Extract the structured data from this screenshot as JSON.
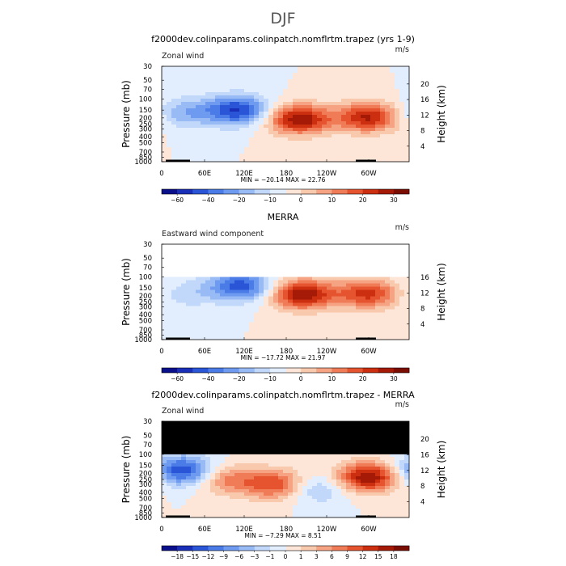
{
  "figure": {
    "title": "DJF"
  },
  "palette_colors": [
    "#0a0f8c",
    "#1a2fb8",
    "#2a55d6",
    "#4a7be6",
    "#6e9bf0",
    "#98baf5",
    "#c2d8fa",
    "#e2eefd",
    "#fde6d8",
    "#f9c9ad",
    "#f5a382",
    "#ef7b57",
    "#e5532f",
    "#cc2f10",
    "#a51a06",
    "#7a0e02"
  ],
  "cmap_wind": [
    "#0a0f8c",
    "#1a2fb8",
    "#2a55d6",
    "#4a7be6",
    "#6e9bf0",
    "#98baf5",
    "#c2d8fa",
    "#e2eefd",
    "#fde6d8",
    "#f9c9ad",
    "#f5a382",
    "#ef7b57",
    "#e5532f",
    "#cc2f10",
    "#a51a06",
    "#7a0e02"
  ],
  "cmap_diff": [
    "#0a0f8c",
    "#1a2fb8",
    "#2a55d6",
    "#4a7be6",
    "#6e9bf0",
    "#98baf5",
    "#c2d8fa",
    "#e2eefd",
    "#fde6d8",
    "#f9c9ad",
    "#f5a382",
    "#ef7b57",
    "#e5532f",
    "#cc2f10",
    "#a51a06",
    "#7a0e02"
  ],
  "chart_data": [
    {
      "type": "heatmap",
      "title": "f2000dev.colinparams.colinpatch.nomflrtm.trapez (yrs 1-9)",
      "left_label": "Zonal wind",
      "units": "m/s",
      "xlabel": "",
      "ylabel": "Pressure (mb)",
      "ylabel_right": "Height (km)",
      "x_ticks": [
        "0",
        "60E",
        "120E",
        "180",
        "120W",
        "60W"
      ],
      "y_ticks": [
        "30",
        "50",
        "70",
        "100",
        "150",
        "200",
        "250",
        "300",
        "400",
        "500",
        "700",
        "850",
        "1000"
      ],
      "y_ticks_right": [
        "20",
        "16",
        "12",
        "8",
        "4"
      ],
      "stats": "MIN = −20.14   MAX =  22.76",
      "colorbar_labels": [
        "−60",
        "−40",
        "−20",
        "−10",
        "0",
        "10",
        "20",
        "30"
      ],
      "min": -20.14,
      "max": 22.76,
      "top_mb": 30,
      "masked_above_mb": null,
      "centers": [
        {
          "lon": 33,
          "mb": 165,
          "value": -9
        },
        {
          "lon": 110,
          "mb": 150,
          "value": -20
        },
        {
          "lon": 200,
          "mb": 210,
          "value": 22.76
        },
        {
          "lon": 300,
          "mb": 195,
          "value": 20
        }
      ]
    },
    {
      "type": "heatmap",
      "title": "MERRA",
      "left_label": "Eastward wind component",
      "units": "m/s",
      "xlabel": "",
      "ylabel": "Pressure (mb)",
      "ylabel_right": "Height (km)",
      "x_ticks": [
        "0",
        "60E",
        "120E",
        "180",
        "120W",
        "60W"
      ],
      "y_ticks": [
        "30",
        "50",
        "70",
        "100",
        "150",
        "200",
        "250",
        "300",
        "400",
        "500",
        "700",
        "850",
        "1000"
      ],
      "y_ticks_right": [
        "16",
        "12",
        "8",
        "4"
      ],
      "stats": "MIN = −17.72   MAX =  21.97",
      "colorbar_labels": [
        "−60",
        "−40",
        "−20",
        "−10",
        "0",
        "10",
        "20",
        "30"
      ],
      "min": -17.72,
      "max": 21.97,
      "top_mb": 100,
      "masked_above_mb": null,
      "centers": [
        {
          "lon": 35,
          "mb": 190,
          "value": -5
        },
        {
          "lon": 115,
          "mb": 140,
          "value": -17.72
        },
        {
          "lon": 205,
          "mb": 190,
          "value": 21.97
        },
        {
          "lon": 300,
          "mb": 185,
          "value": 17
        }
      ]
    },
    {
      "type": "heatmap",
      "title": "f2000dev.colinparams.colinpatch.nomflrtm.trapez - MERRA",
      "left_label": "Zonal wind",
      "units": "m/s",
      "xlabel": "",
      "ylabel": "Pressure (mb)",
      "ylabel_right": "Height (km)",
      "x_ticks": [
        "0",
        "60E",
        "120E",
        "180",
        "120W",
        "60W"
      ],
      "y_ticks": [
        "30",
        "50",
        "70",
        "100",
        "150",
        "200",
        "250",
        "300",
        "400",
        "500",
        "700",
        "850",
        "1000"
      ],
      "y_ticks_right": [
        "20",
        "16",
        "12",
        "8",
        "4"
      ],
      "stats": "MIN =  −7.29   MAX =   8.51",
      "colorbar_labels": [
        "−18",
        "−15",
        "−12",
        "−9",
        "−6",
        "−3",
        "−1",
        "0",
        "1",
        "3",
        "6",
        "9",
        "12",
        "15",
        "18"
      ],
      "min": -7.29,
      "max": 8.51,
      "top_mb": 30,
      "masked_above_mb": 100,
      "centers": [
        {
          "lon": 30,
          "mb": 180,
          "value": -7.29
        },
        {
          "lon": 95,
          "mb": 250,
          "value": 4
        },
        {
          "lon": 165,
          "mb": 300,
          "value": 6
        },
        {
          "lon": 225,
          "mb": 350,
          "value": -3
        },
        {
          "lon": 300,
          "mb": 230,
          "value": 8.51
        }
      ]
    }
  ]
}
